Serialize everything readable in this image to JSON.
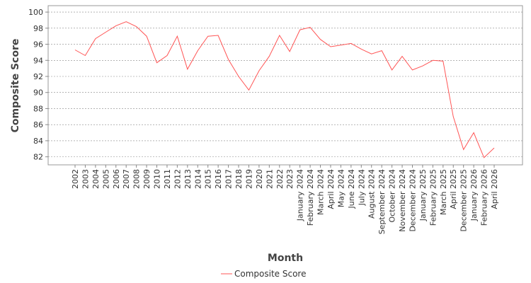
{
  "chart_data": {
    "type": "line",
    "title": "",
    "xlabel": "Month",
    "ylabel": "Composite Score",
    "ylim": [
      81,
      100.8
    ],
    "yticks": [
      82,
      84,
      86,
      88,
      90,
      92,
      94,
      96,
      98,
      100
    ],
    "grid": true,
    "legend_position": "bottom",
    "series_color": "#ff5555",
    "categories": [
      "2002",
      "2003",
      "2004",
      "2005",
      "2006",
      "2007",
      "2008",
      "2009",
      "2010",
      "2011",
      "2012",
      "2013",
      "2014",
      "2015",
      "2016",
      "2017",
      "2018",
      "2019",
      "2020",
      "2021",
      "2022",
      "2023",
      "January 2024",
      "February 2024",
      "March 2024",
      "April 2024",
      "May 2024",
      "June 2024",
      "July 2024",
      "August 2024",
      "September 2024",
      "October 2024",
      "November 2024",
      "December 2024",
      "January 2025",
      "February 2025",
      "March 2025",
      "April 2025",
      "December 2025",
      "January 2026",
      "February 2026",
      "April 2026"
    ],
    "series": [
      {
        "name": "Composite Score",
        "values": [
          95.3,
          94.6,
          96.7,
          97.5,
          98.3,
          98.8,
          98.2,
          97.0,
          93.7,
          94.6,
          97.0,
          92.9,
          95.2,
          97.0,
          97.1,
          94.1,
          92.0,
          90.3,
          92.7,
          94.5,
          97.1,
          95.1,
          97.8,
          98.1,
          96.6,
          95.7,
          95.9,
          96.1,
          95.4,
          94.8,
          95.2,
          92.8,
          94.5,
          92.8,
          93.3,
          94.0,
          93.9,
          87.0,
          82.9,
          85.0,
          81.9,
          83.1
        ]
      }
    ]
  }
}
